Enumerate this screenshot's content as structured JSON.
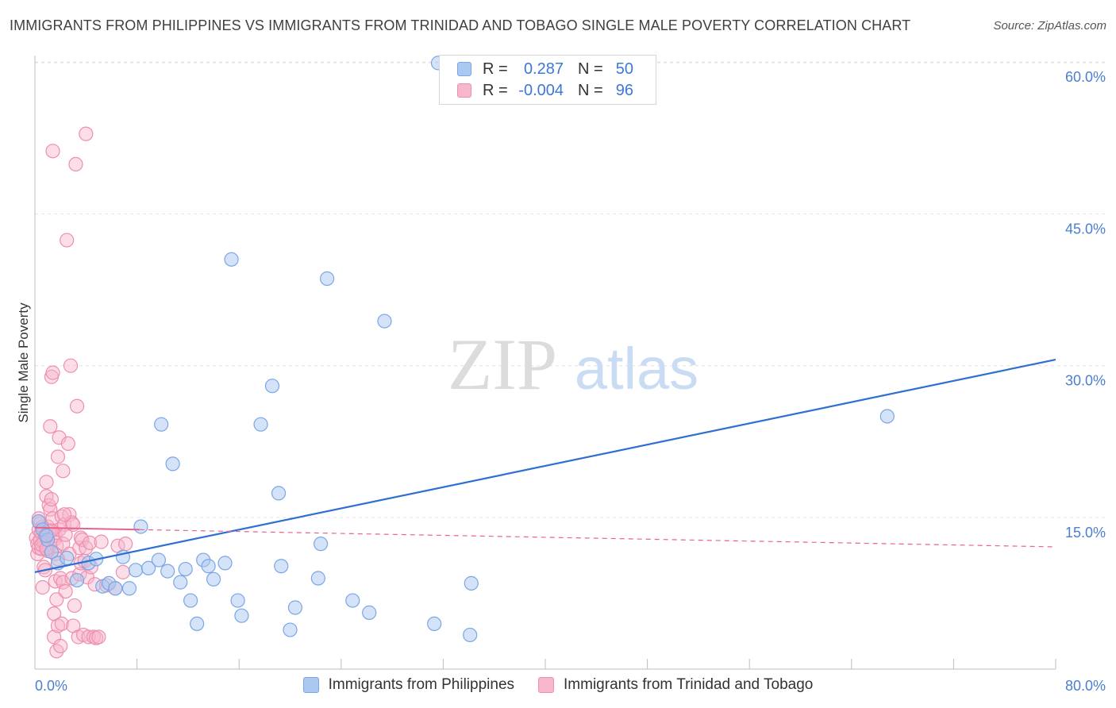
{
  "title": "IMMIGRANTS FROM PHILIPPINES VS IMMIGRANTS FROM TRINIDAD AND TOBAGO SINGLE MALE POVERTY CORRELATION CHART",
  "source": "Source: ZipAtlas.com",
  "watermark": {
    "zip": "ZIP",
    "atlas": "atlas"
  },
  "legend": {
    "r_label": "R =",
    "n_label": "N =",
    "rows": [
      {
        "r": "0.287",
        "n": "50"
      },
      {
        "r": "-0.004",
        "n": "96"
      }
    ]
  },
  "colors": {
    "philippines_fill": "#aac8f0",
    "philippines_stroke": "#7aa6e6",
    "philippines_line": "#2e6fd1",
    "trinidad_fill": "#f6b6cb",
    "trinidad_stroke": "#ef8eae",
    "trinidad_line": "#e8628f",
    "axis_label": "#4a7fd0"
  },
  "chart_data": {
    "type": "scatter",
    "title": "IMMIGRANTS FROM PHILIPPINES VS IMMIGRANTS FROM TRINIDAD AND TOBAGO SINGLE MALE POVERTY CORRELATION CHART",
    "xlabel": "",
    "ylabel": "Single Male Poverty",
    "xlim": [
      0,
      80
    ],
    "ylim": [
      0,
      63
    ],
    "x_tick_labels": [
      "0.0%",
      "80.0%"
    ],
    "y_ticks": [
      15,
      30,
      45,
      60
    ],
    "y_tick_labels": [
      "15.0%",
      "30.0%",
      "45.0%",
      "60.0%"
    ],
    "grid": true,
    "legend_position": "top-center",
    "series": [
      {
        "name": "Immigrants from Philippines",
        "r": 0.287,
        "n": 50,
        "trend": {
          "x": [
            0,
            80
          ],
          "y": [
            9.6,
            30.6
          ]
        },
        "points": [
          [
            0.3,
            14.6
          ],
          [
            0.6,
            13.8
          ],
          [
            1.0,
            12.8
          ],
          [
            1.3,
            11.6
          ],
          [
            1.8,
            10.5
          ],
          [
            2.5,
            11.0
          ],
          [
            3.3,
            8.8
          ],
          [
            4.2,
            10.5
          ],
          [
            4.8,
            10.9
          ],
          [
            5.3,
            8.2
          ],
          [
            5.8,
            8.5
          ],
          [
            6.3,
            8.0
          ],
          [
            6.9,
            11.1
          ],
          [
            7.4,
            8.0
          ],
          [
            7.9,
            9.8
          ],
          [
            8.3,
            14.1
          ],
          [
            8.9,
            10.0
          ],
          [
            9.7,
            10.8
          ],
          [
            9.9,
            24.2
          ],
          [
            10.4,
            9.7
          ],
          [
            10.8,
            20.3
          ],
          [
            11.4,
            8.6
          ],
          [
            11.8,
            9.9
          ],
          [
            12.2,
            6.8
          ],
          [
            12.7,
            4.5
          ],
          [
            13.2,
            10.8
          ],
          [
            13.6,
            10.2
          ],
          [
            14.0,
            8.9
          ],
          [
            14.9,
            10.5
          ],
          [
            15.4,
            40.5
          ],
          [
            15.9,
            6.8
          ],
          [
            16.2,
            5.3
          ],
          [
            17.7,
            24.2
          ],
          [
            18.6,
            28.0
          ],
          [
            19.1,
            17.4
          ],
          [
            19.3,
            10.2
          ],
          [
            20.0,
            3.9
          ],
          [
            20.4,
            6.1
          ],
          [
            22.4,
            12.4
          ],
          [
            22.9,
            38.6
          ],
          [
            22.2,
            9.0
          ],
          [
            24.9,
            6.8
          ],
          [
            26.2,
            5.6
          ],
          [
            27.4,
            34.4
          ],
          [
            31.3,
            4.5
          ],
          [
            31.6,
            59.9
          ],
          [
            34.2,
            8.5
          ],
          [
            34.1,
            3.4
          ],
          [
            66.8,
            25.0
          ],
          [
            0.9,
            13.2
          ]
        ]
      },
      {
        "name": "Immigrants from Trinidad and Tobago",
        "r": -0.004,
        "n": 96,
        "trend_solid": {
          "x": [
            0,
            8.2
          ],
          "y": [
            14.0,
            13.8
          ]
        },
        "trend_dashed": {
          "x": [
            8.2,
            80
          ],
          "y": [
            13.8,
            12.1
          ]
        },
        "points": [
          [
            0.1,
            13.0
          ],
          [
            0.2,
            12.4
          ],
          [
            0.2,
            11.4
          ],
          [
            0.3,
            13.8
          ],
          [
            0.3,
            12.0
          ],
          [
            0.4,
            14.4
          ],
          [
            0.4,
            12.8
          ],
          [
            0.5,
            11.9
          ],
          [
            0.5,
            13.5
          ],
          [
            0.6,
            8.1
          ],
          [
            0.6,
            14.1
          ],
          [
            0.7,
            10.1
          ],
          [
            0.7,
            12.6
          ],
          [
            0.8,
            9.8
          ],
          [
            0.8,
            13.2
          ],
          [
            0.9,
            17.1
          ],
          [
            0.9,
            18.5
          ],
          [
            1.0,
            11.7
          ],
          [
            1.0,
            14.1
          ],
          [
            1.0,
            13.4
          ],
          [
            1.1,
            16.2
          ],
          [
            1.1,
            12.0
          ],
          [
            1.2,
            15.8
          ],
          [
            1.2,
            24.0
          ],
          [
            1.2,
            13.7
          ],
          [
            1.3,
            28.9
          ],
          [
            1.3,
            16.8
          ],
          [
            1.4,
            51.2
          ],
          [
            1.4,
            29.3
          ],
          [
            1.4,
            14.9
          ],
          [
            1.5,
            12.8
          ],
          [
            1.5,
            3.2
          ],
          [
            1.5,
            5.5
          ],
          [
            1.6,
            8.7
          ],
          [
            1.6,
            11.4
          ],
          [
            1.6,
            13.2
          ],
          [
            1.7,
            1.8
          ],
          [
            1.7,
            6.9
          ],
          [
            1.7,
            12.2
          ],
          [
            1.8,
            4.3
          ],
          [
            1.8,
            10.9
          ],
          [
            1.8,
            21.0
          ],
          [
            1.9,
            13.8
          ],
          [
            1.9,
            22.9
          ],
          [
            2.0,
            2.3
          ],
          [
            2.0,
            9.0
          ],
          [
            2.1,
            4.5
          ],
          [
            2.1,
            15.1
          ],
          [
            2.2,
            19.6
          ],
          [
            2.2,
            12.4
          ],
          [
            2.2,
            8.6
          ],
          [
            2.3,
            14.3
          ],
          [
            2.4,
            13.3
          ],
          [
            2.4,
            7.7
          ],
          [
            2.5,
            42.4
          ],
          [
            2.6,
            22.3
          ],
          [
            2.7,
            11.4
          ],
          [
            2.7,
            15.3
          ],
          [
            2.8,
            30.0
          ],
          [
            2.9,
            14.5
          ],
          [
            2.9,
            9.0
          ],
          [
            3.0,
            4.3
          ],
          [
            3.0,
            14.3
          ],
          [
            3.1,
            6.3
          ],
          [
            3.2,
            49.9
          ],
          [
            3.3,
            26.0
          ],
          [
            3.4,
            3.2
          ],
          [
            3.5,
            12.0
          ],
          [
            3.5,
            9.4
          ],
          [
            3.6,
            13.0
          ],
          [
            3.6,
            10.5
          ],
          [
            3.7,
            12.8
          ],
          [
            3.8,
            3.4
          ],
          [
            3.9,
            10.7
          ],
          [
            4.0,
            12.0
          ],
          [
            4.0,
            52.9
          ],
          [
            4.1,
            9.1
          ],
          [
            4.2,
            3.2
          ],
          [
            4.3,
            12.5
          ],
          [
            4.4,
            10.1
          ],
          [
            4.6,
            3.2
          ],
          [
            4.7,
            8.4
          ],
          [
            4.8,
            3.1
          ],
          [
            5.0,
            3.2
          ],
          [
            5.2,
            12.6
          ],
          [
            5.6,
            8.3
          ],
          [
            6.3,
            8.0
          ],
          [
            6.5,
            12.2
          ],
          [
            6.9,
            9.6
          ],
          [
            7.1,
            12.4
          ],
          [
            0.3,
            14.9
          ],
          [
            0.5,
            12.3
          ],
          [
            1.1,
            13.6
          ],
          [
            1.3,
            13.7
          ],
          [
            0.9,
            11.9
          ],
          [
            2.3,
            15.3
          ]
        ]
      }
    ]
  }
}
